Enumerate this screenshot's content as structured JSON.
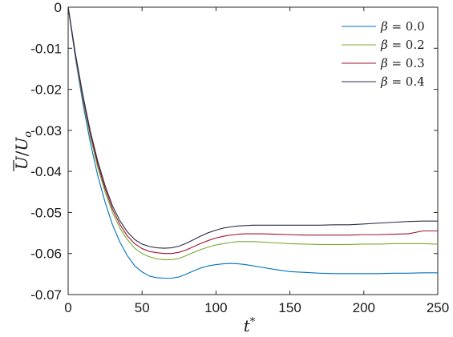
{
  "chart_data": {
    "type": "line",
    "xlabel": "t*",
    "ylabel": "Ū/U_o",
    "xlim": [
      0,
      250
    ],
    "ylim": [
      -0.07,
      0
    ],
    "xticks": [
      0,
      50,
      100,
      150,
      200,
      250
    ],
    "xtick_labels": [
      "0",
      "50",
      "100",
      "150",
      "200",
      "250"
    ],
    "yticks": [
      0,
      -0.01,
      -0.02,
      -0.03,
      -0.04,
      -0.05,
      -0.06,
      -0.07
    ],
    "ytick_labels": [
      "0",
      "-0.01",
      "-0.02",
      "-0.03",
      "-0.04",
      "-0.05",
      "-0.06",
      "-0.07"
    ],
    "grid": false,
    "legend_position": "top-right",
    "x": [
      0,
      5,
      10,
      15,
      20,
      25,
      30,
      35,
      40,
      45,
      50,
      55,
      60,
      65,
      70,
      75,
      80,
      85,
      90,
      95,
      100,
      105,
      110,
      115,
      120,
      125,
      130,
      140,
      150,
      160,
      170,
      180,
      190,
      200,
      210,
      220,
      230,
      240,
      250
    ],
    "series": [
      {
        "name": "β = 0.0",
        "color": "#0072BD",
        "values": [
          0,
          -0.0125,
          -0.0235,
          -0.033,
          -0.041,
          -0.0475,
          -0.053,
          -0.0572,
          -0.0605,
          -0.063,
          -0.0645,
          -0.0655,
          -0.0659,
          -0.066,
          -0.066,
          -0.0657,
          -0.065,
          -0.0642,
          -0.0635,
          -0.063,
          -0.0627,
          -0.0625,
          -0.0624,
          -0.0625,
          -0.0627,
          -0.063,
          -0.0633,
          -0.0639,
          -0.0644,
          -0.0646,
          -0.0648,
          -0.0649,
          -0.0649,
          -0.0649,
          -0.0649,
          -0.0648,
          -0.0648,
          -0.0647,
          -0.0647
        ]
      },
      {
        "name": "β = 0.2",
        "color": "#77AC30",
        "values": [
          0,
          -0.012,
          -0.0225,
          -0.0315,
          -0.039,
          -0.045,
          -0.05,
          -0.0538,
          -0.0566,
          -0.0587,
          -0.06,
          -0.0608,
          -0.0613,
          -0.0615,
          -0.0615,
          -0.0612,
          -0.0605,
          -0.0597,
          -0.059,
          -0.0584,
          -0.0579,
          -0.0576,
          -0.0573,
          -0.0571,
          -0.0571,
          -0.0571,
          -0.0572,
          -0.0574,
          -0.0576,
          -0.0577,
          -0.0578,
          -0.0578,
          -0.0578,
          -0.0577,
          -0.0577,
          -0.0576,
          -0.0576,
          -0.0576,
          -0.0577
        ]
      },
      {
        "name": "β = 0.3",
        "color": "#A2142F",
        "values": [
          0,
          -0.0118,
          -0.022,
          -0.0308,
          -0.0382,
          -0.0442,
          -0.0492,
          -0.0529,
          -0.0557,
          -0.0576,
          -0.0588,
          -0.0595,
          -0.0598,
          -0.06,
          -0.06,
          -0.0597,
          -0.0591,
          -0.0583,
          -0.0575,
          -0.0568,
          -0.0562,
          -0.0558,
          -0.0555,
          -0.0553,
          -0.0552,
          -0.0552,
          -0.0552,
          -0.0553,
          -0.0554,
          -0.0555,
          -0.0555,
          -0.0555,
          -0.0555,
          -0.0554,
          -0.0554,
          -0.0553,
          -0.0552,
          -0.0545,
          -0.0545
        ]
      },
      {
        "name": "β = 0.4",
        "color": "#2C2A4A",
        "values": [
          0,
          -0.0115,
          -0.0215,
          -0.0302,
          -0.0375,
          -0.0435,
          -0.0484,
          -0.052,
          -0.0547,
          -0.0566,
          -0.0577,
          -0.0583,
          -0.0586,
          -0.0587,
          -0.0586,
          -0.0582,
          -0.0575,
          -0.0566,
          -0.0557,
          -0.0549,
          -0.0543,
          -0.0538,
          -0.0535,
          -0.0533,
          -0.0532,
          -0.0531,
          -0.0531,
          -0.0531,
          -0.0531,
          -0.0531,
          -0.0531,
          -0.053,
          -0.053,
          -0.0528,
          -0.0526,
          -0.0524,
          -0.0522,
          -0.0521,
          -0.0521
        ]
      }
    ]
  }
}
